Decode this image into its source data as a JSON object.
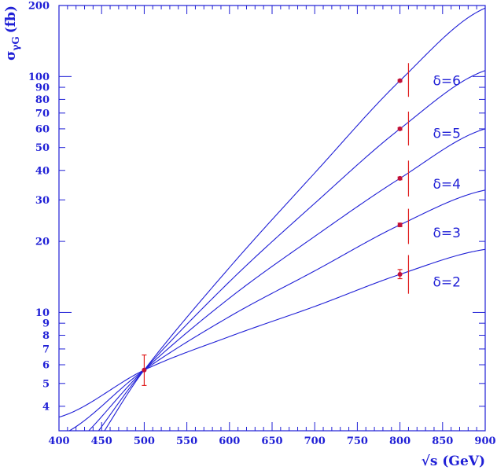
{
  "chart_data": {
    "type": "line",
    "title": "",
    "xlabel": "√s (GeV)",
    "ylabel_main": "σ",
    "ylabel_sub": "γG",
    "ylabel_unit": "(fb)",
    "xlim": [
      400,
      900
    ],
    "ylim": [
      3.15,
      200
    ],
    "yscale": "log",
    "grid": false,
    "x_ticks": [
      400,
      450,
      500,
      550,
      600,
      650,
      700,
      750,
      800,
      850,
      900
    ],
    "x_tick_labels": [
      "400",
      "450",
      "500",
      "550",
      "600",
      "650",
      "700",
      "750",
      "800",
      "850",
      "900"
    ],
    "y_ticks": [
      4,
      5,
      6,
      7,
      8,
      9,
      10,
      20,
      30,
      40,
      50,
      60,
      70,
      80,
      90,
      100,
      200
    ],
    "y_tick_labels": [
      "4",
      "5",
      "6",
      "7",
      "8",
      "9",
      "10",
      "20",
      "30",
      "40",
      "50",
      "60",
      "70",
      "80",
      "90",
      "100",
      "200"
    ],
    "series": [
      {
        "name": "δ=2",
        "x": [
          400,
          500,
          600,
          700,
          800,
          900
        ],
        "y": [
          3.6,
          5.7,
          7.9,
          10.6,
          14.5,
          18.5
        ]
      },
      {
        "name": "δ=3",
        "x": [
          400,
          500,
          600,
          700,
          800,
          900
        ],
        "y": [
          3.0,
          5.7,
          9.6,
          15.0,
          23.5,
          33.0
        ]
      },
      {
        "name": "δ=4",
        "x": [
          400,
          500,
          600,
          700,
          800,
          900
        ],
        "y": [
          2.5,
          5.7,
          11.5,
          21.0,
          37.0,
          60.0
        ]
      },
      {
        "name": "δ=5",
        "x": [
          400,
          500,
          600,
          700,
          800,
          900
        ],
        "y": [
          2.1,
          5.7,
          13.5,
          29.0,
          60.0,
          106.0
        ]
      },
      {
        "name": "δ=6",
        "x": [
          400,
          500,
          600,
          700,
          800,
          900
        ],
        "y": [
          1.8,
          5.7,
          15.5,
          39.0,
          96.0,
          195.0
        ]
      }
    ],
    "data_points": [
      {
        "x": 500,
        "y": 5.7,
        "err_low": 4.9,
        "err_high": 6.6
      },
      {
        "x": 800,
        "y": 14.5,
        "err_low": 13.9,
        "err_high": 15.2
      },
      {
        "x": 800,
        "y": 23.5,
        "err_low": 23.1,
        "err_high": 23.9
      },
      {
        "x": 800,
        "y": 37.0,
        "err_low": 36.5,
        "err_high": 37.5
      },
      {
        "x": 800,
        "y": 60.0,
        "err_low": 59.3,
        "err_high": 60.7
      },
      {
        "x": 800,
        "y": 96.0,
        "err_low": 95.0,
        "err_high": 97.0
      }
    ],
    "markers": [
      {
        "x": 810,
        "y_low": 12.0,
        "y_high": 17.5
      },
      {
        "x": 810,
        "y_low": 19.5,
        "y_high": 27.5
      },
      {
        "x": 810,
        "y_low": 31.0,
        "y_high": 44.0
      },
      {
        "x": 810,
        "y_low": 51.0,
        "y_high": 71.0
      },
      {
        "x": 810,
        "y_low": 82.0,
        "y_high": 114.0
      }
    ],
    "curve_labels": [
      {
        "text": "δ=2",
        "x": 855,
        "y": 13.5
      },
      {
        "text": "δ=3",
        "x": 855,
        "y": 21.8
      },
      {
        "text": "δ=4",
        "x": 855,
        "y": 35.0
      },
      {
        "text": "δ=5",
        "x": 855,
        "y": 57.5
      },
      {
        "text": "δ=6",
        "x": 855,
        "y": 96.0
      }
    ],
    "colors": {
      "curve": "#1f1fd6",
      "axis": "#1f1fd6",
      "error": "#e02020",
      "point": "#c0103a"
    }
  }
}
